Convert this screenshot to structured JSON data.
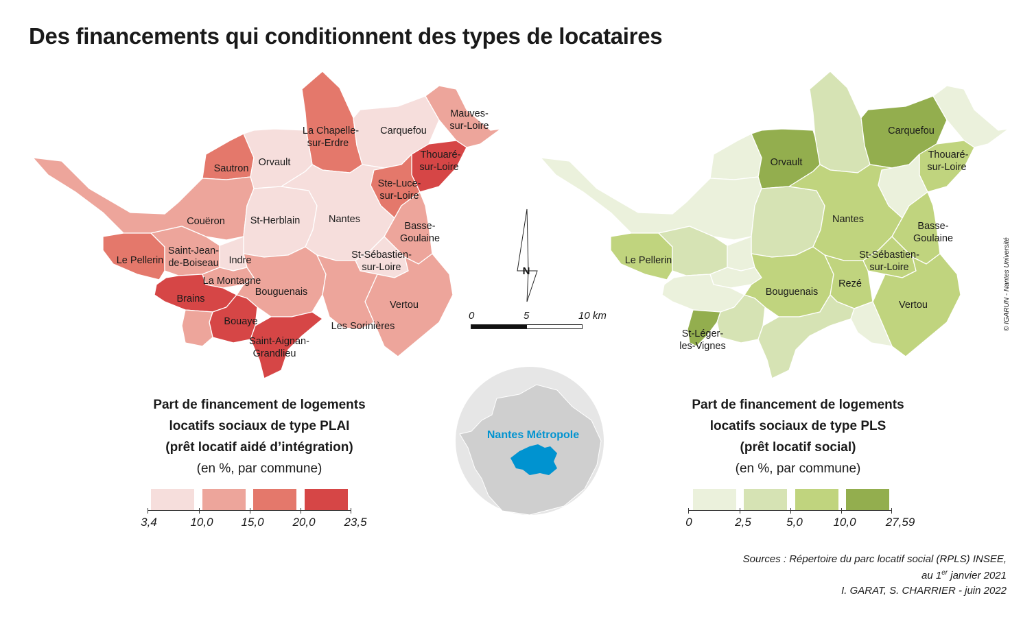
{
  "title": "Des financements qui conditionnent des types de locataires",
  "colors": {
    "plai": [
      "#f6dedc",
      "#eda59b",
      "#e4786b",
      "#d64646"
    ],
    "pls": [
      "#ebf1dc",
      "#d6e3b4",
      "#c0d47e",
      "#93ae4e"
    ],
    "inset_circle": "#e6e6e6",
    "inset_land": "#cfcfcf",
    "inset_highlight": "#0093d0",
    "inset_label": "#0093d0"
  },
  "plai_map": {
    "legend": {
      "title_lines": [
        "Part de financement de logements",
        "locatifs sociaux de type PLAI",
        "(prêt locatif aidé d’intégration)"
      ],
      "subtitle": "(en %, par commune)",
      "breaks": [
        "3,4",
        "10,0",
        "15,0",
        "20,0",
        "23,5"
      ]
    },
    "communes": [
      {
        "name": "La Chapelle-",
        "name2": "sur-Erdre",
        "cls": 2
      },
      {
        "name": "Carquefou",
        "cls": 0
      },
      {
        "name": "Mauves-",
        "name2": "sur-Loire",
        "cls": 1
      },
      {
        "name": "Thouaré-",
        "name2": "sur-Loire",
        "cls": 3
      },
      {
        "name": "Sautron",
        "cls": 2
      },
      {
        "name": "Orvault",
        "cls": 0
      },
      {
        "name": "Ste-Luce-",
        "name2": "sur-Loire",
        "cls": 2
      },
      {
        "name": "Couëron",
        "cls": 1
      },
      {
        "name": "St-Herblain",
        "cls": 0
      },
      {
        "name": "Nantes",
        "cls": 0
      },
      {
        "name": "Basse-",
        "name2": "Goulaine",
        "cls": 1
      },
      {
        "name": "Le Pellerin",
        "cls": 2
      },
      {
        "name": "Saint-Jean-",
        "name2": "de-Boiseau",
        "cls": 1
      },
      {
        "name": "Indre",
        "cls": 0
      },
      {
        "name": "St-Sébastien-",
        "name2": "sur-Loire",
        "cls": 0
      },
      {
        "name": "La Montagne",
        "cls": 1
      },
      {
        "name": "Brains",
        "cls": 3
      },
      {
        "name": "Bouguenais",
        "cls": 1
      },
      {
        "name": "Vertou",
        "cls": 1
      },
      {
        "name": "Bouaye",
        "cls": 3
      },
      {
        "name": "Les Sorinières",
        "cls": 1
      },
      {
        "name": "Saint-Aignan-",
        "name2": "Grandlieu",
        "cls": 3
      }
    ]
  },
  "pls_map": {
    "legend": {
      "title_lines": [
        "Part de financement de logements",
        "locatifs sociaux de type PLS",
        "(prêt locatif social)"
      ],
      "subtitle": "(en %, par commune)",
      "breaks": [
        "0",
        "2,5",
        "5,0",
        "10,0",
        "27,59"
      ]
    },
    "communes": [
      {
        "name": "Carquefou",
        "cls": 3
      },
      {
        "name": "Orvault",
        "cls": 3
      },
      {
        "name": "Thouaré-",
        "name2": "sur-Loire",
        "cls": 2
      },
      {
        "name": "Nantes",
        "cls": 2
      },
      {
        "name": "Basse-",
        "name2": "Goulaine",
        "cls": 2
      },
      {
        "name": "Le Pellerin",
        "cls": 2
      },
      {
        "name": "St-Sébastien-",
        "name2": "sur-Loire",
        "cls": 2
      },
      {
        "name": "Bouguenais",
        "cls": 2
      },
      {
        "name": "Rezé",
        "cls": 2
      },
      {
        "name": "Vertou",
        "cls": 2
      },
      {
        "name": "St-Léger-",
        "name2": "les-Vignes",
        "cls": 3
      }
    ]
  },
  "north_label": "N",
  "scale_labels": [
    "0",
    "5",
    "10 km"
  ],
  "inset_label": "Nantes Métropole",
  "sources": {
    "line1": "Sources : Répertoire du parc locatif social (RPLS) INSEE,",
    "line2_pre": "au 1",
    "line2_sup": "er",
    "line2_post": " janvier 2021"
  },
  "credit": "I. GARAT, S. CHARRIER - juin 2022",
  "copyright": "© IGARUN - Nantes Université"
}
